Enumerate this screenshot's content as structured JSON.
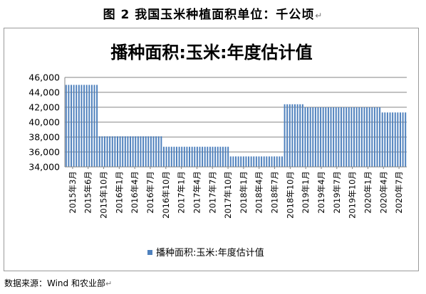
{
  "figure": {
    "caption": "图 2  我国玉米种植面积单位：千公顷",
    "source": "数据来源：Wind 和农业部",
    "paragraph_mark": "↵"
  },
  "chart_data": {
    "type": "bar",
    "title": "播种面积:玉米:年度估计值",
    "xlabel": "",
    "ylabel": "",
    "ylim": [
      34000,
      46000
    ],
    "yticks": [
      34000,
      36000,
      38000,
      40000,
      42000,
      44000,
      46000
    ],
    "ytick_labels": [
      "34,000",
      "36,000",
      "38,000",
      "40,000",
      "42,000",
      "44,000",
      "46,000"
    ],
    "grid": true,
    "legend_position": "bottom",
    "bar_color": "#4f81bd",
    "tick_labels": [
      "2015年3月",
      "2015年6月",
      "2015年10月",
      "2016年1月",
      "2016年4月",
      "2016年7月",
      "2016年10月",
      "2017年1月",
      "2017年4月",
      "2017年7月",
      "2017年10月",
      "2018年1月",
      "2018年4月",
      "2018年7月",
      "2018年10月",
      "2019年1月",
      "2019年4月",
      "2019年7月",
      "2019年10月",
      "2020年1月",
      "2020年4月",
      "2020年7月"
    ],
    "series": [
      {
        "name": "播种面积:玉米:年度估计值",
        "values": [
          45000,
          45000,
          45000,
          45000,
          45000,
          45000,
          45000,
          45000,
          45000,
          45000,
          45000,
          45000,
          45000,
          38100,
          38100,
          38100,
          38100,
          38100,
          38100,
          38100,
          38100,
          38100,
          38100,
          38100,
          38100,
          38100,
          38100,
          38100,
          38100,
          38100,
          38100,
          38100,
          38100,
          38100,
          38100,
          38100,
          38100,
          38100,
          36700,
          36700,
          36700,
          36700,
          36700,
          36700,
          36700,
          36700,
          36700,
          36700,
          36700,
          36700,
          36700,
          36700,
          36700,
          36700,
          36700,
          36700,
          36700,
          36700,
          36700,
          36700,
          36700,
          36700,
          36700,
          36700,
          35400,
          35400,
          35400,
          35400,
          35400,
          35400,
          35400,
          35400,
          35400,
          35400,
          35400,
          35400,
          35400,
          35400,
          35400,
          35400,
          35400,
          35400,
          35400,
          35400,
          35400,
          42400,
          42400,
          42400,
          42400,
          42400,
          42400,
          42400,
          42400,
          42000,
          42000,
          42000,
          42000,
          42000,
          42000,
          42000,
          42000,
          42000,
          42000,
          42000,
          42000,
          42000,
          42000,
          42000,
          42000,
          42000,
          42000,
          42000,
          42000,
          42000,
          42000,
          42000,
          42000,
          42000,
          42000,
          42000,
          42000,
          42000,
          42000,
          41300,
          41300,
          41300,
          41300,
          41300,
          41300,
          41300,
          41300,
          41300,
          41300
        ]
      }
    ]
  }
}
